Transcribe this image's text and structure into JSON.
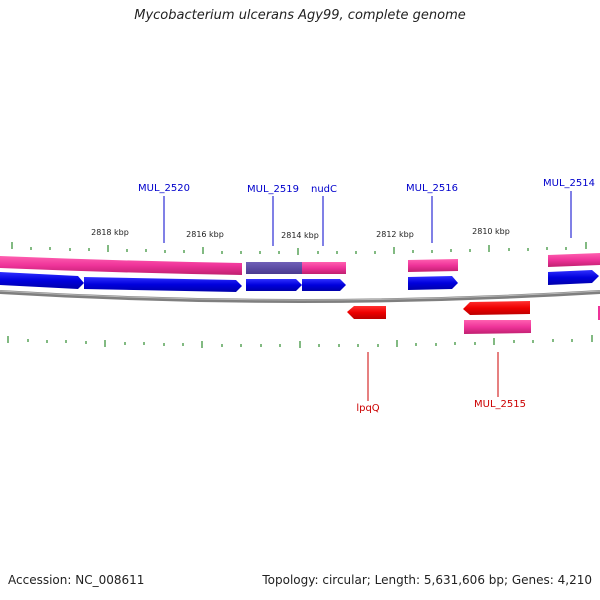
{
  "title": "Mycobacterium ulcerans Agy99, complete genome",
  "footer": {
    "accession": "Accession: NC_008611",
    "topology": "Topology: circular; Length: 5,631,606 bp; Genes: 4,210"
  },
  "colors": {
    "forward_gene": "#0000ee",
    "reverse_gene": "#ee0000",
    "cds_pink": "#ee3399",
    "cds_purple": "#5a4aa0",
    "forward_label": "#0000cc",
    "reverse_label": "#cc0000",
    "backbone": "#808080",
    "tick": "#2e8b2e",
    "text": "#222222"
  },
  "scale_labels": [
    "2818 kbp",
    "2816 kbp",
    "2814 kbp",
    "2812 kbp",
    "2810 kbp"
  ],
  "genes": [
    {
      "name": "MUL_2520",
      "strand": "forward"
    },
    {
      "name": "MUL_2519",
      "strand": "forward"
    },
    {
      "name": "nudC",
      "strand": "forward"
    },
    {
      "name": "MUL_2516",
      "strand": "forward"
    },
    {
      "name": "MUL_2514",
      "strand": "forward"
    },
    {
      "name": "lpqQ",
      "strand": "reverse"
    },
    {
      "name": "MUL_2515",
      "strand": "reverse"
    }
  ]
}
